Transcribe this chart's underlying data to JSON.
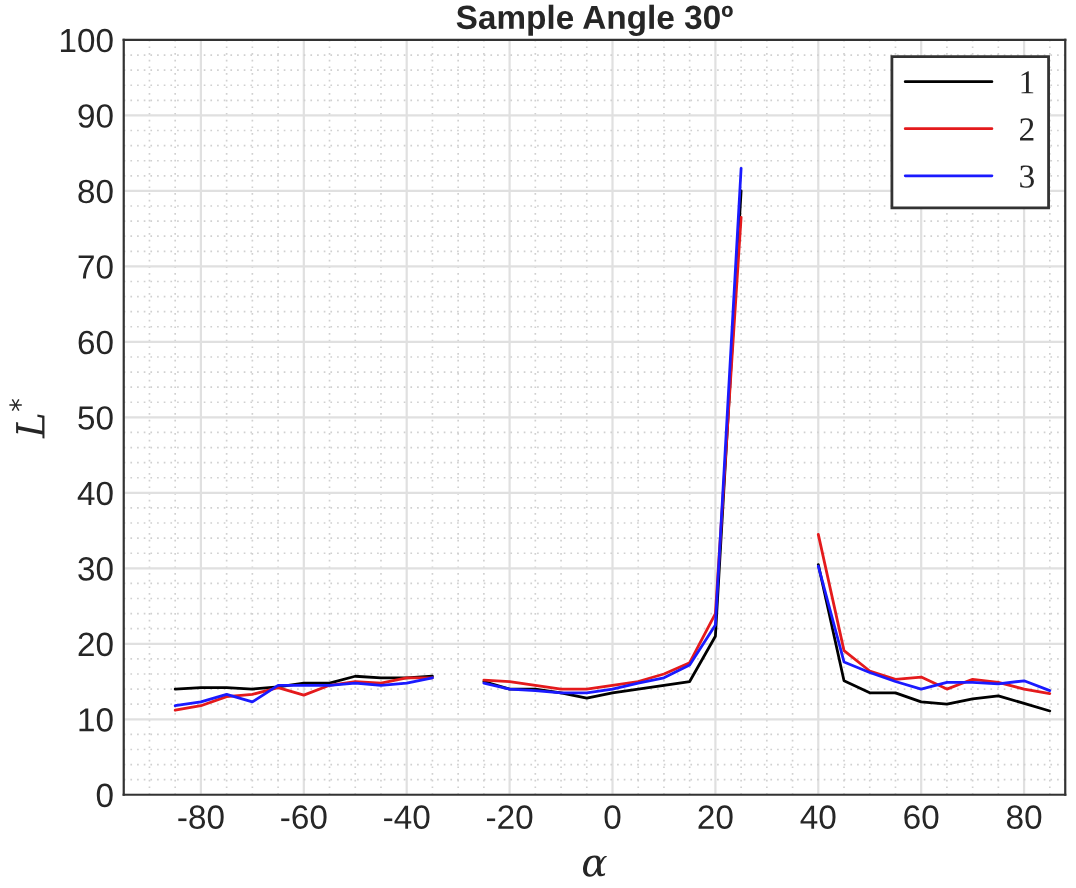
{
  "chart_data": {
    "type": "line",
    "title": "Sample Angle 30º",
    "xlabel": "α",
    "ylabel": "L$^{*}$",
    "x": [
      -85,
      -80,
      -75,
      -70,
      -65,
      -60,
      -55,
      -50,
      -45,
      -40,
      -35,
      -30,
      -25,
      -20,
      -15,
      -10,
      -5,
      0,
      5,
      10,
      15,
      20,
      25,
      30,
      35,
      40,
      45,
      50,
      55,
      60,
      65,
      70,
      75,
      80,
      85
    ],
    "series": [
      {
        "name": "1",
        "color": "#000000",
        "values": [
          14,
          14.2,
          14.2,
          14,
          14.3,
          14.8,
          14.8,
          15.7,
          15.5,
          15.5,
          15.7,
          null,
          15,
          14,
          14,
          13.5,
          12.8,
          13.5,
          14,
          14.5,
          15,
          21,
          80,
          null,
          null,
          30.5,
          15.1,
          13.5,
          13.5,
          12.3,
          12,
          12.7,
          13.1,
          12.1,
          11.1
        ]
      },
      {
        "name": "2",
        "color": "#e41a1c",
        "values": [
          11.2,
          11.8,
          13,
          13.3,
          14.2,
          13.2,
          14.5,
          15,
          14.8,
          15.5,
          15.5,
          null,
          15.2,
          15,
          14.5,
          14,
          14,
          14.5,
          15,
          16,
          17.5,
          24,
          76.5,
          null,
          null,
          34.5,
          19.1,
          16.4,
          15.3,
          15.6,
          14,
          15.3,
          14.9,
          14,
          13.4
        ]
      },
      {
        "name": "3",
        "color": "#1a1aff",
        "values": [
          11.8,
          12.3,
          13.3,
          12.3,
          14.5,
          14.5,
          14.5,
          14.8,
          14.5,
          14.8,
          15.5,
          null,
          14.8,
          14,
          13.8,
          13.5,
          13.5,
          14,
          14.8,
          15.5,
          17.2,
          22.5,
          83,
          null,
          null,
          30.3,
          17.6,
          16.2,
          15,
          14,
          14.9,
          14.9,
          14.7,
          15.1,
          13.8
        ]
      }
    ],
    "xlim": [
      -95,
      88
    ],
    "xticks": [
      -80,
      -60,
      -40,
      -20,
      0,
      20,
      40,
      60,
      80
    ],
    "ylim": [
      0,
      100
    ],
    "yticks": [
      0,
      10,
      20,
      30,
      40,
      50,
      60,
      70,
      80,
      90,
      100
    ],
    "grid": true,
    "legend": "top right"
  }
}
